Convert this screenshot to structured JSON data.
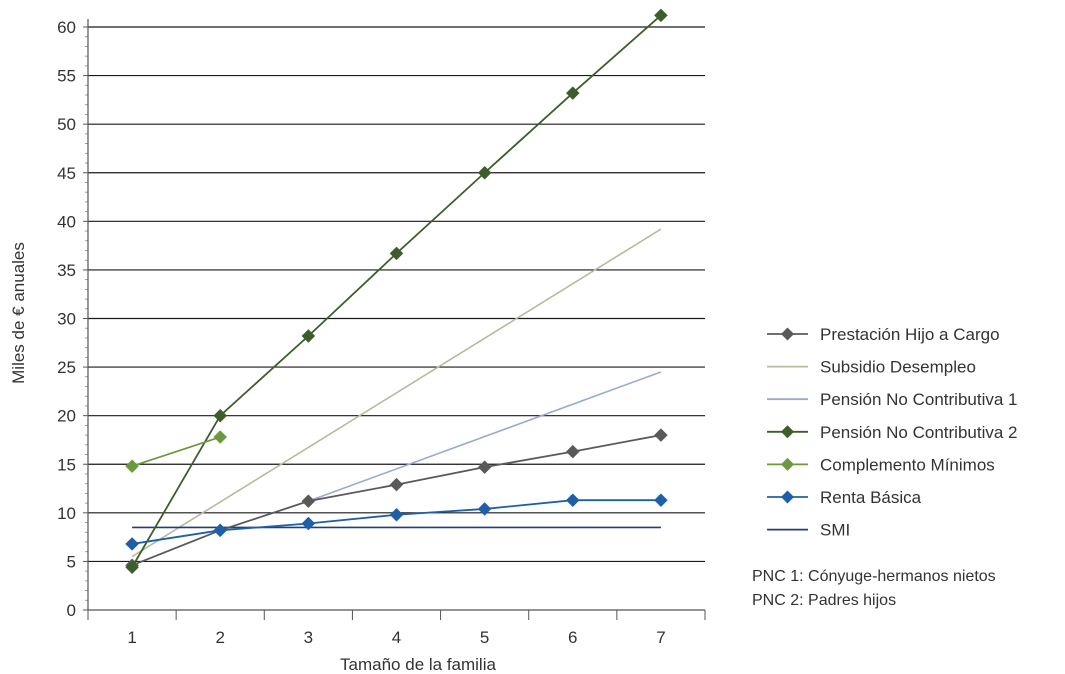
{
  "chart_data": {
    "type": "line",
    "xlabel": "Tamaño de la familia",
    "ylabel": "Miles de € anuales",
    "x": [
      1,
      2,
      3,
      4,
      5,
      6,
      7
    ],
    "xlim": [
      0.5,
      7.5
    ],
    "ylim": [
      0,
      60
    ],
    "yticks": [
      0,
      5,
      10,
      15,
      20,
      25,
      30,
      35,
      40,
      45,
      50,
      55,
      60
    ],
    "grid": "horizontal",
    "legend_position": "right",
    "series": [
      {
        "name": "Prestación Hijo a Cargo",
        "color": "#595959",
        "marker": "diamond",
        "x": [
          1,
          2,
          3,
          4,
          5,
          6,
          7
        ],
        "values": [
          4.6,
          8.2,
          11.2,
          12.9,
          14.7,
          16.3,
          18.0
        ]
      },
      {
        "name": "Subsidio Desempleo",
        "color": "#b3bc9f",
        "marker": "none",
        "x": [
          1,
          7
        ],
        "values": [
          5.5,
          39.2
        ]
      },
      {
        "name": "Pensión No Contributiva 1",
        "color": "#9aa9cf",
        "marker": "none",
        "x": [
          3,
          7
        ],
        "values": [
          11.2,
          24.5
        ]
      },
      {
        "name": "Pensión No Contributiva 2",
        "color": "#3d5e2a",
        "marker": "diamond",
        "x": [
          1,
          2,
          3,
          4,
          5,
          6,
          7
        ],
        "values": [
          4.4,
          20.0,
          28.2,
          36.7,
          45.0,
          53.2,
          61.2
        ]
      },
      {
        "name": "Complemento Mínimos",
        "color": "#6b9a3e",
        "marker": "diamond",
        "x": [
          1,
          2
        ],
        "values": [
          14.8,
          17.8
        ]
      },
      {
        "name": "Renta Básica",
        "color": "#1f5fa8",
        "marker": "diamond",
        "x": [
          1,
          2,
          3,
          4,
          5,
          6,
          7
        ],
        "values": [
          6.8,
          8.2,
          8.9,
          9.8,
          10.4,
          11.3,
          11.3
        ]
      },
      {
        "name": "SMI",
        "color": "#1f3f7a",
        "marker": "none",
        "x": [
          1,
          7
        ],
        "values": [
          8.5,
          8.5
        ]
      }
    ],
    "notes": [
      "PNC 1: Cónyuge-hermanos nietos",
      "PNC 2: Padres hijos"
    ]
  }
}
